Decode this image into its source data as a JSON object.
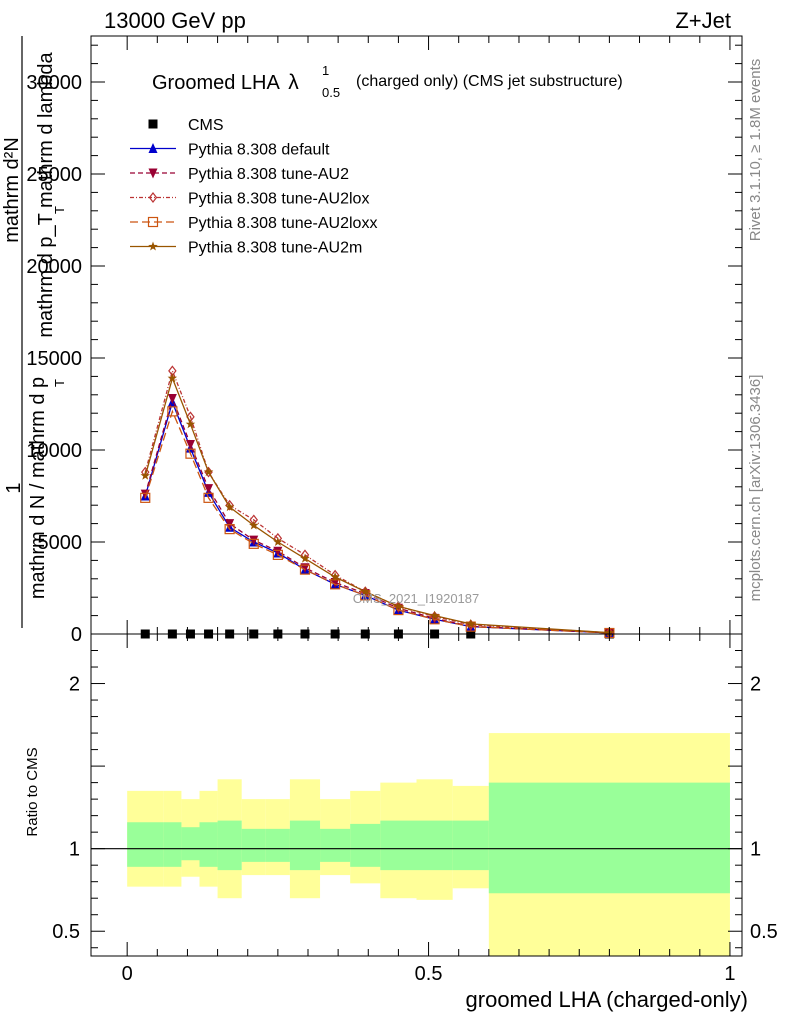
{
  "header": {
    "energy": "13000 GeV pp",
    "process": "Z+Jet"
  },
  "side_text": {
    "rivet": "Rivet 3.1.10, ≥ 1.8M events",
    "mcplots": "mcplots.cern.ch [arXiv:1306.3436]"
  },
  "chart_data": [
    {
      "type": "line",
      "title": "Groomed LHA",
      "title_symbol": "λ",
      "title_sup": "1",
      "title_sub": "0.5",
      "title_suffix": "(charged only) (CMS jet substructure)",
      "watermark": "CMS_2021_I1920187",
      "ylabel_line1": "mathrm d²N",
      "ylabel_line2": "mathrm d p_T mathrm d lambda",
      "ylabel_line3": "mathrm d N / mathrm d p",
      "ylabel_sub": "T",
      "ylabel_one": "1",
      "xlim": [
        -0.06,
        1.02
      ],
      "ylim": [
        0,
        32500
      ],
      "yticks": [
        0,
        5000,
        10000,
        15000,
        20000,
        25000,
        30000
      ],
      "ytick_labels": [
        "0",
        "5000",
        "10000",
        "15000",
        "20000",
        "25000",
        "30000"
      ],
      "grid": false,
      "legend_position": "top-left",
      "x": [
        0.03,
        0.075,
        0.105,
        0.135,
        0.17,
        0.21,
        0.25,
        0.295,
        0.345,
        0.395,
        0.45,
        0.51,
        0.57,
        0.8
      ],
      "series": [
        {
          "name": "CMS",
          "color": "#000000",
          "marker": "square",
          "dash": "none",
          "values": [
            0,
            0,
            0,
            0,
            0,
            0,
            0,
            0,
            0,
            0,
            0,
            0,
            0,
            0
          ]
        },
        {
          "name": "Pythia 8.308 default",
          "color": "#0000cc",
          "marker": "triangle-up",
          "dash": "solid",
          "values": [
            7500,
            12600,
            10100,
            7700,
            5800,
            5000,
            4400,
            3500,
            2700,
            2100,
            1300,
            800,
            400,
            60
          ]
        },
        {
          "name": "Pythia 8.308 tune-AU2",
          "color": "#990033",
          "marker": "triangle-down",
          "dash": "dash",
          "values": [
            7600,
            12800,
            10300,
            7900,
            6000,
            5100,
            4500,
            3600,
            2800,
            2200,
            1400,
            850,
            420,
            60
          ]
        },
        {
          "name": "Pythia 8.308 tune-AU2lox",
          "color": "#bb3333",
          "marker": "diamond-open",
          "dash": "dashdot",
          "values": [
            8800,
            14300,
            11800,
            8800,
            7000,
            6200,
            5200,
            4300,
            3200,
            2300,
            1500,
            950,
            500,
            70
          ]
        },
        {
          "name": "Pythia 8.308 tune-AU2loxx",
          "color": "#cc5511",
          "marker": "square-open",
          "dash": "longdash",
          "values": [
            7400,
            12100,
            9800,
            7400,
            5700,
            4900,
            4300,
            3500,
            2700,
            2100,
            1300,
            800,
            400,
            55
          ]
        },
        {
          "name": "Pythia 8.308 tune-AU2m",
          "color": "#995500",
          "marker": "star",
          "dash": "solid",
          "values": [
            8600,
            13900,
            11400,
            8800,
            6900,
            5900,
            5000,
            4100,
            3100,
            2300,
            1500,
            1000,
            550,
            70
          ]
        }
      ]
    },
    {
      "type": "area",
      "xlabel": "groomed LHA (charged-only)",
      "ylabel": "Ratio to CMS",
      "xlim": [
        -0.06,
        1.02
      ],
      "ylim": [
        0.35,
        2.3
      ],
      "xticks": [
        0,
        0.5,
        1
      ],
      "xtick_labels": [
        "0",
        "0.5",
        "1"
      ],
      "yticks": [
        0.5,
        1,
        2
      ],
      "ytick_labels": [
        "0.5",
        "1",
        "2"
      ],
      "reference_line": 1,
      "bins": [
        {
          "xlo": 0.0,
          "xhi": 0.06,
          "inner": [
            0.89,
            1.16
          ],
          "outer": [
            0.77,
            1.35
          ]
        },
        {
          "xlo": 0.06,
          "xhi": 0.09,
          "inner": [
            0.89,
            1.16
          ],
          "outer": [
            0.77,
            1.35
          ]
        },
        {
          "xlo": 0.09,
          "xhi": 0.12,
          "inner": [
            0.93,
            1.13
          ],
          "outer": [
            0.83,
            1.3
          ]
        },
        {
          "xlo": 0.12,
          "xhi": 0.15,
          "inner": [
            0.89,
            1.16
          ],
          "outer": [
            0.77,
            1.35
          ]
        },
        {
          "xlo": 0.15,
          "xhi": 0.19,
          "inner": [
            0.87,
            1.17
          ],
          "outer": [
            0.7,
            1.42
          ]
        },
        {
          "xlo": 0.19,
          "xhi": 0.23,
          "inner": [
            0.92,
            1.12
          ],
          "outer": [
            0.84,
            1.3
          ]
        },
        {
          "xlo": 0.23,
          "xhi": 0.27,
          "inner": [
            0.92,
            1.12
          ],
          "outer": [
            0.84,
            1.3
          ]
        },
        {
          "xlo": 0.27,
          "xhi": 0.32,
          "inner": [
            0.87,
            1.17
          ],
          "outer": [
            0.7,
            1.42
          ]
        },
        {
          "xlo": 0.32,
          "xhi": 0.37,
          "inner": [
            0.92,
            1.12
          ],
          "outer": [
            0.84,
            1.3
          ]
        },
        {
          "xlo": 0.37,
          "xhi": 0.42,
          "inner": [
            0.89,
            1.15
          ],
          "outer": [
            0.79,
            1.35
          ]
        },
        {
          "xlo": 0.42,
          "xhi": 0.48,
          "inner": [
            0.87,
            1.17
          ],
          "outer": [
            0.7,
            1.4
          ]
        },
        {
          "xlo": 0.48,
          "xhi": 0.54,
          "inner": [
            0.87,
            1.17
          ],
          "outer": [
            0.69,
            1.42
          ]
        },
        {
          "xlo": 0.54,
          "xhi": 0.6,
          "inner": [
            0.87,
            1.17
          ],
          "outer": [
            0.76,
            1.38
          ]
        },
        {
          "xlo": 0.6,
          "xhi": 1.0,
          "inner": [
            0.73,
            1.4
          ],
          "outer": [
            0.35,
            1.7
          ]
        }
      ],
      "colors": {
        "inner": "#99ff99",
        "outer": "#ffff99"
      }
    }
  ]
}
